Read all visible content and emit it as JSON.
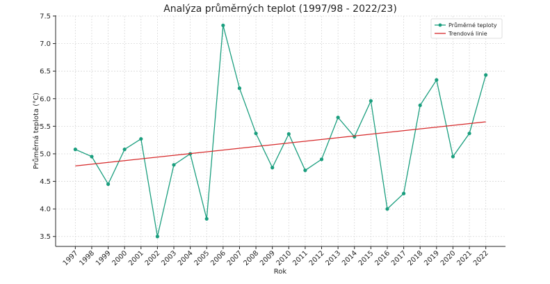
{
  "chart_data": {
    "type": "line",
    "title": "Analýza průměrných teplot (1997/98 - 2022/23)",
    "x_label": "Rok",
    "y_label": "Průměrná teplota (°C)",
    "series": [
      {
        "name": "Průměrné teploty",
        "color": "#1a9e7e",
        "marker": true,
        "x": [
          1997,
          1998,
          1999,
          2000,
          2001,
          2002,
          2003,
          2004,
          2005,
          2006,
          2007,
          2008,
          2009,
          2010,
          2011,
          2012,
          2013,
          2014,
          2015,
          2016,
          2017,
          2018,
          2019,
          2020,
          2021,
          2022
        ],
        "values": [
          5.08,
          4.95,
          4.45,
          5.08,
          5.27,
          3.5,
          4.8,
          5.0,
          3.82,
          7.33,
          6.19,
          5.37,
          4.75,
          5.36,
          4.7,
          4.9,
          5.66,
          5.31,
          5.96,
          4.0,
          4.28,
          5.88,
          6.34,
          4.95,
          5.37,
          6.43
        ]
      },
      {
        "name": "Trendová linie",
        "color": "#d62728",
        "marker": false,
        "x": [
          1997,
          2022
        ],
        "values": [
          4.78,
          5.58
        ]
      }
    ],
    "xlim": [
      1995.8,
      2023.2
    ],
    "xticks": [
      1997,
      1998,
      1999,
      2000,
      2001,
      2002,
      2003,
      2004,
      2005,
      2006,
      2007,
      2008,
      2009,
      2010,
      2011,
      2012,
      2013,
      2014,
      2015,
      2016,
      2017,
      2018,
      2019,
      2020,
      2021,
      2022
    ],
    "ylim": [
      3.32,
      7.5
    ],
    "yticks": [
      {
        "value": 3.5,
        "label": "3.5"
      },
      {
        "value": 4,
        "label": "4.0"
      },
      {
        "value": 4.5,
        "label": "4.5"
      },
      {
        "value": 5,
        "label": "5.0"
      },
      {
        "value": 5.5,
        "label": "5.5"
      },
      {
        "value": 6,
        "label": "6.0"
      },
      {
        "value": 6.5,
        "label": "6.5"
      },
      {
        "value": 7,
        "label": "7.0"
      },
      {
        "value": 7.5,
        "label": "7.5"
      }
    ],
    "grid": true,
    "legend": "upper right"
  }
}
